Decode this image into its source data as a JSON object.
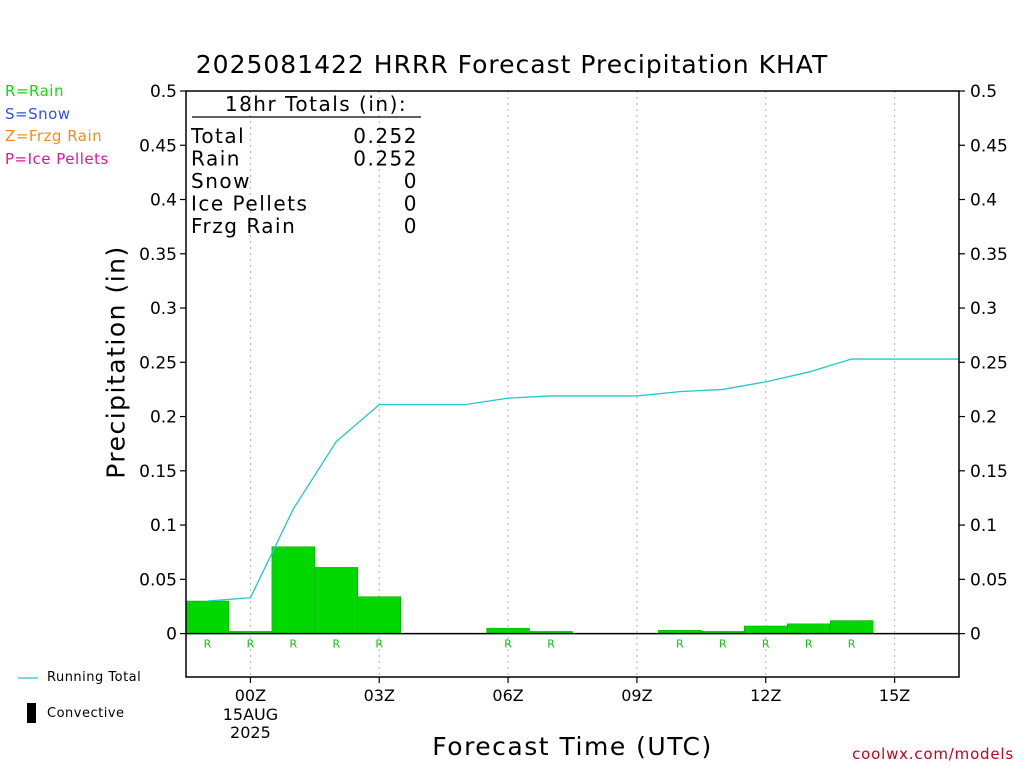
{
  "chart_data": {
    "type": "bar",
    "title": "2025081422 HRRR Forecast Precipitation KHAT",
    "xlabel": "Forecast Time (UTC)",
    "ylabel": "Precipitation (in)",
    "ylim": [
      -0.04,
      0.5
    ],
    "yticks": [
      0,
      0.05,
      0.1,
      0.15,
      0.2,
      0.25,
      0.3,
      0.35,
      0.4,
      0.45,
      0.5
    ],
    "ytick_labels": [
      "0",
      "0.05",
      "0.1",
      "0.15",
      "0.2",
      "0.25",
      "0.3",
      "0.35",
      "0.4",
      "0.45",
      "0.5"
    ],
    "xlim": [
      -1.5,
      16.5
    ],
    "xticks": [
      {
        "x": 0,
        "label": "00Z",
        "sub": [
          "15AUG",
          "2025"
        ]
      },
      {
        "x": 3,
        "label": "03Z",
        "sub": []
      },
      {
        "x": 6,
        "label": "06Z",
        "sub": []
      },
      {
        "x": 9,
        "label": "09Z",
        "sub": []
      },
      {
        "x": 12,
        "label": "12Z",
        "sub": []
      },
      {
        "x": 15,
        "label": "15Z",
        "sub": []
      }
    ],
    "grid_x": true,
    "series": [
      {
        "name": "Rain",
        "color": "#00d800",
        "x": [
          -1,
          0,
          1,
          2,
          3,
          4,
          5,
          6,
          7,
          8,
          9,
          10,
          11,
          12,
          13,
          14,
          15
        ],
        "values": [
          0.03,
          0.002,
          0.08,
          0.061,
          0.034,
          0,
          0,
          0.005,
          0.002,
          0,
          0,
          0.003,
          0.002,
          0.007,
          0.009,
          0.012,
          0
        ],
        "type_codes": [
          "R",
          "R",
          "R",
          "R",
          "R",
          "",
          "",
          "R",
          "R",
          "",
          "",
          "R",
          "R",
          "R",
          "R",
          "R",
          ""
        ]
      },
      {
        "name": "Running Total",
        "type": "line",
        "color": "#20c8d0",
        "x": [
          -1,
          0,
          1,
          2,
          3,
          4,
          5,
          6,
          7,
          8,
          9,
          10,
          11,
          12,
          13,
          14,
          15,
          16.5
        ],
        "values": [
          0.03,
          0.033,
          0.115,
          0.177,
          0.211,
          0.211,
          0.211,
          0.217,
          0.219,
          0.219,
          0.219,
          0.223,
          0.225,
          0.232,
          0.241,
          0.253,
          0.253,
          0.253
        ]
      }
    ],
    "totals_box": {
      "heading": "18hr Totals (in):",
      "rows": [
        {
          "label": "Total",
          "value": "0.252"
        },
        {
          "label": "Rain",
          "value": "0.252"
        },
        {
          "label": "Snow",
          "value": "0"
        },
        {
          "label": "Ice Pellets",
          "value": "0"
        },
        {
          "label": "Frzg Rain",
          "value": "0"
        }
      ]
    },
    "legend": [
      {
        "label": "Running Total",
        "color": "#20c8d0",
        "symbol": "line"
      },
      {
        "label": "Convective",
        "color": "#000000",
        "symbol": "bar"
      }
    ]
  },
  "precip_types": [
    {
      "label": "R=Rain",
      "color": "#10d810"
    },
    {
      "label": "S=Snow",
      "color": "#3050e8"
    },
    {
      "label": "Z=Frzg Rain",
      "color": "#f08c28"
    },
    {
      "label": "P=Ice Pellets",
      "color": "#e01898"
    }
  ],
  "credit": "coolwx.com/models"
}
